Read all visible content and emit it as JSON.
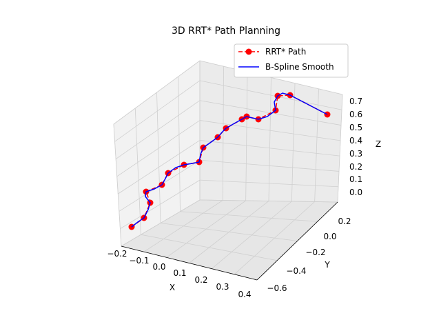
{
  "chart_data": {
    "type": "line",
    "title": "3D RRT* Path Planning",
    "xlabel": "X",
    "ylabel": "Y",
    "zlabel": "Z",
    "xlim": [
      -0.2,
      0.4
    ],
    "ylim": [
      -0.6,
      0.2
    ],
    "zlim": [
      0.0,
      0.7
    ],
    "x_ticks": [
      "−0.2",
      "−0.1",
      "0.0",
      "0.1",
      "0.2",
      "0.3",
      "0.4"
    ],
    "y_ticks": [
      "−0.6",
      "−0.4",
      "−0.2",
      "0.0",
      "0.2"
    ],
    "z_ticks": [
      "0.0",
      "0.1",
      "0.2",
      "0.3",
      "0.4",
      "0.5",
      "0.6",
      "0.7"
    ],
    "grid": true,
    "legend_position": "top-right",
    "legend": [
      "RRT* Path",
      "B-Spline Smooth"
    ],
    "colors": {
      "rrt": "#ff0000",
      "spline": "#0000ff"
    },
    "series": [
      {
        "name": "RRT* Path",
        "points_screen_est": [
          [
            191,
            329
          ],
          [
            209,
            316
          ],
          [
            218,
            294
          ],
          [
            212,
            278
          ],
          [
            235,
            268
          ],
          [
            244,
            251
          ],
          [
            267,
            239
          ],
          [
            289,
            235
          ],
          [
            295,
            214
          ],
          [
            316,
            199
          ],
          [
            328,
            186
          ],
          [
            351,
            173
          ],
          [
            358,
            169
          ],
          [
            375,
            173
          ],
          [
            400,
            160
          ],
          [
            403,
            139
          ],
          [
            421,
            138
          ],
          [
            475,
            166
          ]
        ]
      },
      {
        "name": "B-Spline Smooth",
        "points_screen_est": [
          [
            191,
            329
          ],
          [
            200,
            322
          ],
          [
            209,
            316
          ],
          [
            215,
            304
          ],
          [
            218,
            294
          ],
          [
            211,
            285
          ],
          [
            212,
            278
          ],
          [
            224,
            274
          ],
          [
            235,
            268
          ],
          [
            240,
            259
          ],
          [
            244,
            251
          ],
          [
            255,
            243
          ],
          [
            267,
            239
          ],
          [
            279,
            237
          ],
          [
            289,
            235
          ],
          [
            291,
            224
          ],
          [
            295,
            214
          ],
          [
            305,
            207
          ],
          [
            316,
            199
          ],
          [
            322,
            192
          ],
          [
            328,
            186
          ],
          [
            340,
            179
          ],
          [
            351,
            173
          ],
          [
            356,
            170
          ],
          [
            358,
            169
          ],
          [
            366,
            171
          ],
          [
            375,
            173
          ],
          [
            388,
            169
          ],
          [
            400,
            160
          ],
          [
            398,
            148
          ],
          [
            403,
            139
          ],
          [
            410,
            135
          ],
          [
            421,
            138
          ],
          [
            448,
            152
          ],
          [
            475,
            166
          ]
        ]
      }
    ]
  }
}
